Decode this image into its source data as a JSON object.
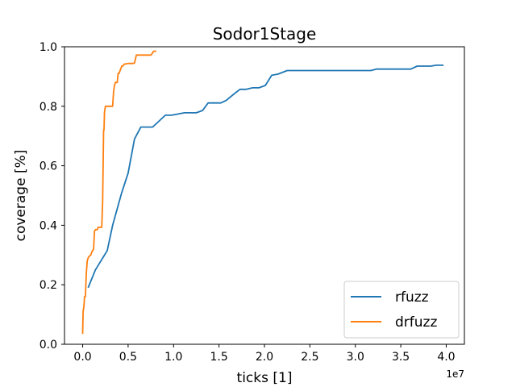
{
  "chart_data": {
    "type": "line",
    "title": "Sodor1Stage",
    "xlabel": "ticks [1]",
    "ylabel": "coverage [%]",
    "x_offset_label": "1e7",
    "xlim": [
      -2000000,
      42000000
    ],
    "ylim": [
      0.0,
      1.0
    ],
    "x_ticks": [
      0,
      5000000,
      10000000,
      15000000,
      20000000,
      25000000,
      30000000,
      35000000,
      40000000
    ],
    "x_tick_labels": [
      "0.0",
      "0.5",
      "1.0",
      "1.5",
      "2.0",
      "2.5",
      "3.0",
      "3.5",
      "4.0"
    ],
    "y_ticks": [
      0.0,
      0.2,
      0.4,
      0.6,
      0.8,
      1.0
    ],
    "y_tick_labels": [
      "0.0",
      "0.2",
      "0.4",
      "0.6",
      "0.8",
      "1.0"
    ],
    "grid": false,
    "legend_position": "lower-right",
    "series": [
      {
        "name": "rfuzz",
        "color": "#1f77b4",
        "x": [
          600000,
          1400000,
          2700000,
          3300000,
          4300000,
          5000000,
          5700000,
          6400000,
          7700000,
          9100000,
          9800000,
          11200000,
          12500000,
          13200000,
          13800000,
          15200000,
          15800000,
          16600000,
          17300000,
          18000000,
          18700000,
          19400000,
          20100000,
          20800000,
          21500000,
          22500000,
          25000000,
          28000000,
          31700000,
          32300000,
          36100000,
          36800000,
          38300000,
          38900000,
          39700000
        ],
        "y": [
          0.19,
          0.25,
          0.315,
          0.4,
          0.51,
          0.575,
          0.69,
          0.73,
          0.73,
          0.77,
          0.77,
          0.778,
          0.778,
          0.786,
          0.811,
          0.811,
          0.82,
          0.84,
          0.857,
          0.857,
          0.862,
          0.862,
          0.87,
          0.904,
          0.908,
          0.92,
          0.92,
          0.92,
          0.92,
          0.925,
          0.925,
          0.935,
          0.935,
          0.938,
          0.938
        ]
      },
      {
        "name": "drfuzz",
        "color": "#ff7f0e",
        "x": [
          0,
          50000,
          150000,
          200000,
          300000,
          400000,
          500000,
          600000,
          700000,
          900000,
          1000000,
          1200000,
          1300000,
          1400000,
          1600000,
          1700000,
          1900000,
          2100000,
          2200000,
          2300000,
          2350000,
          2400000,
          2500000,
          2550000,
          2600000,
          3300000,
          3400000,
          3500000,
          3600000,
          3800000,
          3900000,
          4000000,
          4300000,
          4400000,
          4600000,
          4700000,
          5000000,
          5100000,
          5300000,
          5500000,
          5700000,
          5900000,
          6200000,
          7500000,
          7600000,
          7800000,
          8100000
        ],
        "y": [
          0.035,
          0.11,
          0.13,
          0.16,
          0.16,
          0.24,
          0.28,
          0.29,
          0.295,
          0.3,
          0.31,
          0.32,
          0.38,
          0.385,
          0.385,
          0.393,
          0.393,
          0.393,
          0.48,
          0.72,
          0.72,
          0.78,
          0.8,
          0.8,
          0.8,
          0.8,
          0.85,
          0.87,
          0.88,
          0.88,
          0.91,
          0.91,
          0.935,
          0.935,
          0.942,
          0.942,
          0.944,
          0.944,
          0.944,
          0.944,
          0.945,
          0.972,
          0.972,
          0.972,
          0.975,
          0.985,
          0.985
        ]
      }
    ]
  }
}
